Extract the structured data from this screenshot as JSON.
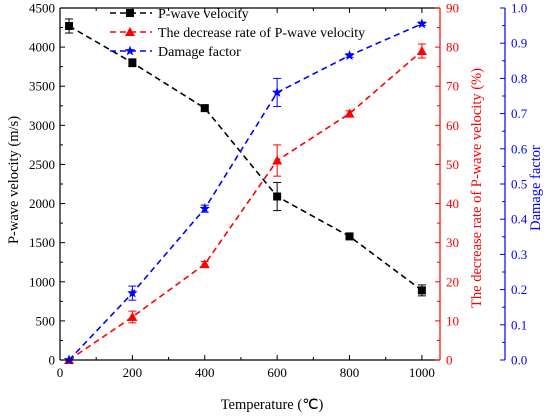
{
  "chart_data": {
    "type": "line",
    "xlabel": "Temperature (℃)",
    "x_ticks": [
      0,
      200,
      400,
      600,
      800,
      1000
    ],
    "xlim": [
      0,
      1050
    ],
    "axes": {
      "left": {
        "label": "P-wave velocity (m/s)",
        "ylim": [
          0,
          4500
        ],
        "ticks": [
          0,
          500,
          1000,
          1500,
          2000,
          2500,
          3000,
          3500,
          4000,
          4500
        ],
        "color": "#000000"
      },
      "right1": {
        "label": "The decrease rate of P-wave velocity (%)",
        "ylim": [
          0,
          90
        ],
        "ticks": [
          0,
          10,
          20,
          30,
          40,
          50,
          60,
          70,
          80,
          90
        ],
        "color": "#ff0000"
      },
      "right2": {
        "label": "Damage factor",
        "ylim": [
          0,
          1
        ],
        "ticks": [
          "0.0",
          "0.1",
          "0.2",
          "0.3",
          "0.4",
          "0.5",
          "0.6",
          "0.7",
          "0.8",
          "0.9",
          "1.0"
        ],
        "color": "#0000ff"
      }
    },
    "legend_position": "top-left",
    "series": [
      {
        "name": "P-wave velocity",
        "axis": "left",
        "color": "#000000",
        "marker": "square",
        "x": [
          25,
          200,
          400,
          600,
          800,
          1000
        ],
        "y": [
          4270,
          3800,
          3220,
          2090,
          1580,
          890
        ],
        "err": [
          90,
          50,
          30,
          180,
          30,
          70
        ]
      },
      {
        "name": "The decrease rate of P-wave velocity",
        "axis": "right1",
        "color": "#ff0000",
        "marker": "triangle",
        "x": [
          25,
          200,
          400,
          600,
          800,
          1000
        ],
        "y": [
          0,
          11,
          24.5,
          51,
          63,
          79
        ],
        "err": [
          0,
          1.5,
          0.7,
          4,
          0.7,
          1.8
        ]
      },
      {
        "name": "Damage factor",
        "axis": "right2",
        "color": "#0000ff",
        "marker": "star",
        "x": [
          25,
          200,
          400,
          600,
          800,
          1000
        ],
        "y": [
          0,
          0.19,
          0.43,
          0.76,
          0.865,
          0.955
        ],
        "err": [
          0,
          0.02,
          0.01,
          0.04,
          0.005,
          0.005
        ]
      }
    ]
  }
}
